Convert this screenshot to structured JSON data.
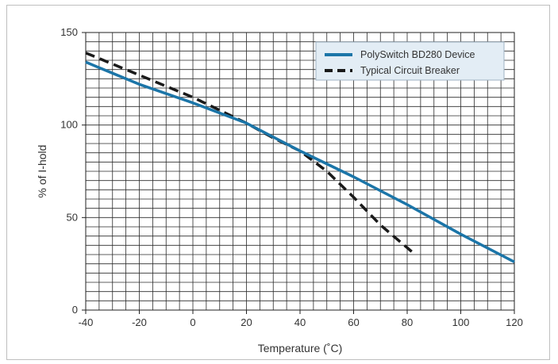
{
  "chart_data": {
    "type": "line",
    "title": "",
    "xlabel": "Temperature (˚C)",
    "ylabel": "% of I-hold",
    "xlim": [
      -40,
      120
    ],
    "ylim": [
      0,
      150
    ],
    "xticks": [
      -40,
      -20,
      0,
      20,
      40,
      60,
      80,
      100,
      120
    ],
    "yticks": [
      0,
      50,
      100,
      150
    ],
    "x_minor_step": 5,
    "y_minor_step": 5,
    "grid": true,
    "legend_position": "top-right",
    "series": [
      {
        "name": "PolySwitch BD280 Device",
        "style": "solid",
        "color": "#1b75a8",
        "x": [
          -40,
          -20,
          0,
          20,
          40,
          60,
          80,
          100,
          120
        ],
        "y": [
          134,
          122,
          112,
          101,
          86,
          72,
          57,
          41,
          26
        ]
      },
      {
        "name": "Typical Circuit Breaker",
        "style": "dashed",
        "color": "#1a1a1a",
        "x": [
          -40,
          -20,
          0,
          20,
          30,
          40,
          50,
          60,
          70,
          83
        ],
        "y": [
          139,
          127,
          115,
          101,
          93,
          86,
          75,
          61,
          46,
          30
        ]
      }
    ]
  }
}
